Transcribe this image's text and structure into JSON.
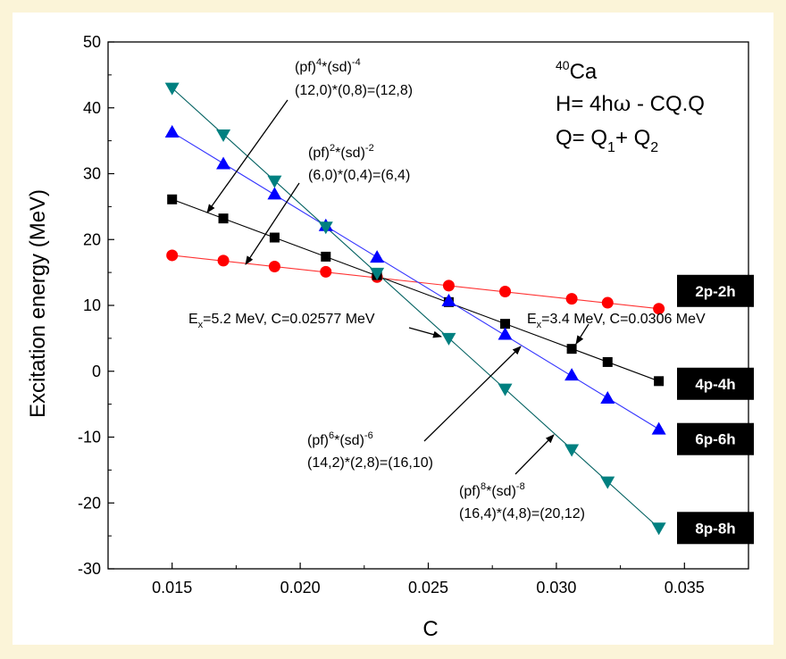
{
  "chart_data": {
    "type": "scatter",
    "xlabel": "C",
    "ylabel": "Excitation energy (MeV)",
    "xlim": [
      0.0125,
      0.0375
    ],
    "ylim": [
      -30,
      50
    ],
    "xticks": [
      0.015,
      0.02,
      0.025,
      0.03,
      0.035
    ],
    "xtick_labels": [
      "0.015",
      "0.020",
      "0.025",
      "0.030",
      "0.035"
    ],
    "yticks": [
      -30,
      -20,
      -10,
      0,
      10,
      20,
      30,
      40,
      50
    ],
    "ytick_labels": [
      "-30",
      "-20",
      "-10",
      "0",
      "10",
      "20",
      "30",
      "40",
      "50"
    ],
    "series": [
      {
        "name": "2p-2h",
        "marker": "circle",
        "color": "#ff0000",
        "line_color": "#ff3333",
        "x": [
          0.015,
          0.017,
          0.019,
          0.021,
          0.023,
          0.0258,
          0.028,
          0.0306,
          0.032,
          0.034
        ],
        "y": [
          17.6,
          16.8,
          15.9,
          15.1,
          14.3,
          13.0,
          12.1,
          11.0,
          10.4,
          9.5
        ],
        "fit": [
          [
            0.015,
            17.6
          ],
          [
            0.034,
            9.5
          ]
        ]
      },
      {
        "name": "4p-4h",
        "marker": "square",
        "color": "#000000",
        "line_color": "#000000",
        "x": [
          0.015,
          0.017,
          0.019,
          0.021,
          0.023,
          0.0258,
          0.028,
          0.0306,
          0.032,
          0.034
        ],
        "y": [
          26.1,
          23.2,
          20.3,
          17.4,
          14.6,
          10.5,
          7.2,
          3.4,
          1.4,
          -1.5
        ],
        "fit": [
          [
            0.015,
            26.1
          ],
          [
            0.034,
            -1.5
          ]
        ]
      },
      {
        "name": "6p-6h",
        "marker": "triangle-up",
        "color": "#0000ff",
        "line_color": "#3333ff",
        "x": [
          0.015,
          0.017,
          0.019,
          0.021,
          0.023,
          0.0258,
          0.028,
          0.0306,
          0.032,
          0.034
        ],
        "y": [
          36.3,
          31.5,
          26.9,
          22.1,
          17.3,
          10.7,
          5.6,
          -0.6,
          -4.1,
          -8.8
        ],
        "fit": [
          [
            0.015,
            36.3
          ],
          [
            0.034,
            -8.8
          ]
        ]
      },
      {
        "name": "8p-8h",
        "marker": "triangle-down",
        "color": "#008080",
        "line_color": "#006060",
        "x": [
          0.015,
          0.017,
          0.019,
          0.021,
          0.023,
          0.0258,
          0.028,
          0.0306,
          0.032,
          0.034
        ],
        "y": [
          43.0,
          35.9,
          28.9,
          21.9,
          14.9,
          5.0,
          -2.7,
          -11.9,
          -16.8,
          -23.8
        ],
        "fit": [
          [
            0.015,
            43.0
          ],
          [
            0.034,
            -23.8
          ]
        ]
      }
    ],
    "badges": [
      {
        "label": "2p-2h",
        "y": 12.2
      },
      {
        "label": "4p-4h",
        "y": -1.9
      },
      {
        "label": "6p-6h",
        "y": -10.3
      },
      {
        "label": "8p-8h",
        "y": -23.8
      }
    ],
    "info": {
      "nucleus_mass": "40",
      "nucleus": "Ca",
      "hamiltonian_pre": "H= 4h",
      "hamiltonian_omega": "ω",
      "hamiltonian_post": " - CQ.Q",
      "q_pre": "Q= Q",
      "q_sub1": "1",
      "q_mid": "+ Q",
      "q_sub2": "2"
    },
    "annotations": {
      "a4_pf": "(pf)",
      "a4_e1": "4",
      "a4_sd": "*(sd)",
      "a4_e2": "-4",
      "a4_line2": "(12,0)*(0,8)=(12,8)",
      "a2_pf": "(pf)",
      "a2_e1": "2",
      "a2_sd": "*(sd)",
      "a2_e2": "-2",
      "a2_line2": "(6,0)*(0,4)=(6,4)",
      "a6_pf": "(pf)",
      "a6_e1": "6",
      "a6_sd": "*(sd)",
      "a6_e2": "-6",
      "a6_line2": "(14,2)*(2,8)=(16,10)",
      "a8_pf": "(pf)",
      "a8_e1": "8",
      "a8_sd": "*(sd)",
      "a8_e2": "-8",
      "a8_line2": "(16,4)*(4,8)=(20,12)",
      "ex1_e": "E",
      "ex1_sub": "x",
      "ex1_rest": "=5.2 MeV, C=0.02577 MeV",
      "ex2_e": "E",
      "ex2_sub": "x",
      "ex2_rest": "=3.4 MeV, C=0.0306 MeV"
    }
  }
}
